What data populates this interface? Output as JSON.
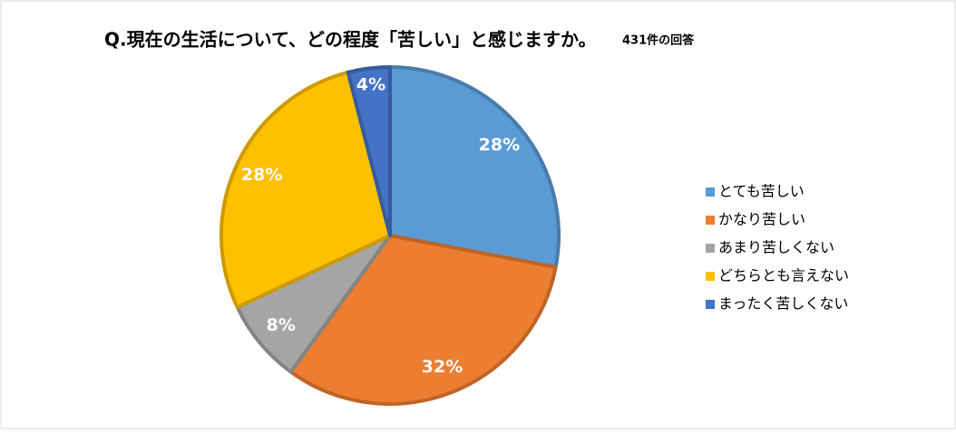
{
  "chart_data": {
    "type": "pie",
    "title": "Q.現在の生活について、どの程度「苦しい」と感じますか。",
    "subtitle": "431件の回答",
    "categories": [
      "とても苦しい",
      "かなり苦しい",
      "あまり苦しくない",
      "どちらとも言えない",
      "まったく苦しくない"
    ],
    "values": [
      28,
      32,
      8,
      28,
      4
    ],
    "value_labels": [
      "28%",
      "32%",
      "8%",
      "28%",
      "4%"
    ],
    "colors": [
      "#5b9bd5",
      "#ed7d31",
      "#a5a5a5",
      "#ffc000",
      "#4472c4"
    ],
    "legend": "right"
  }
}
